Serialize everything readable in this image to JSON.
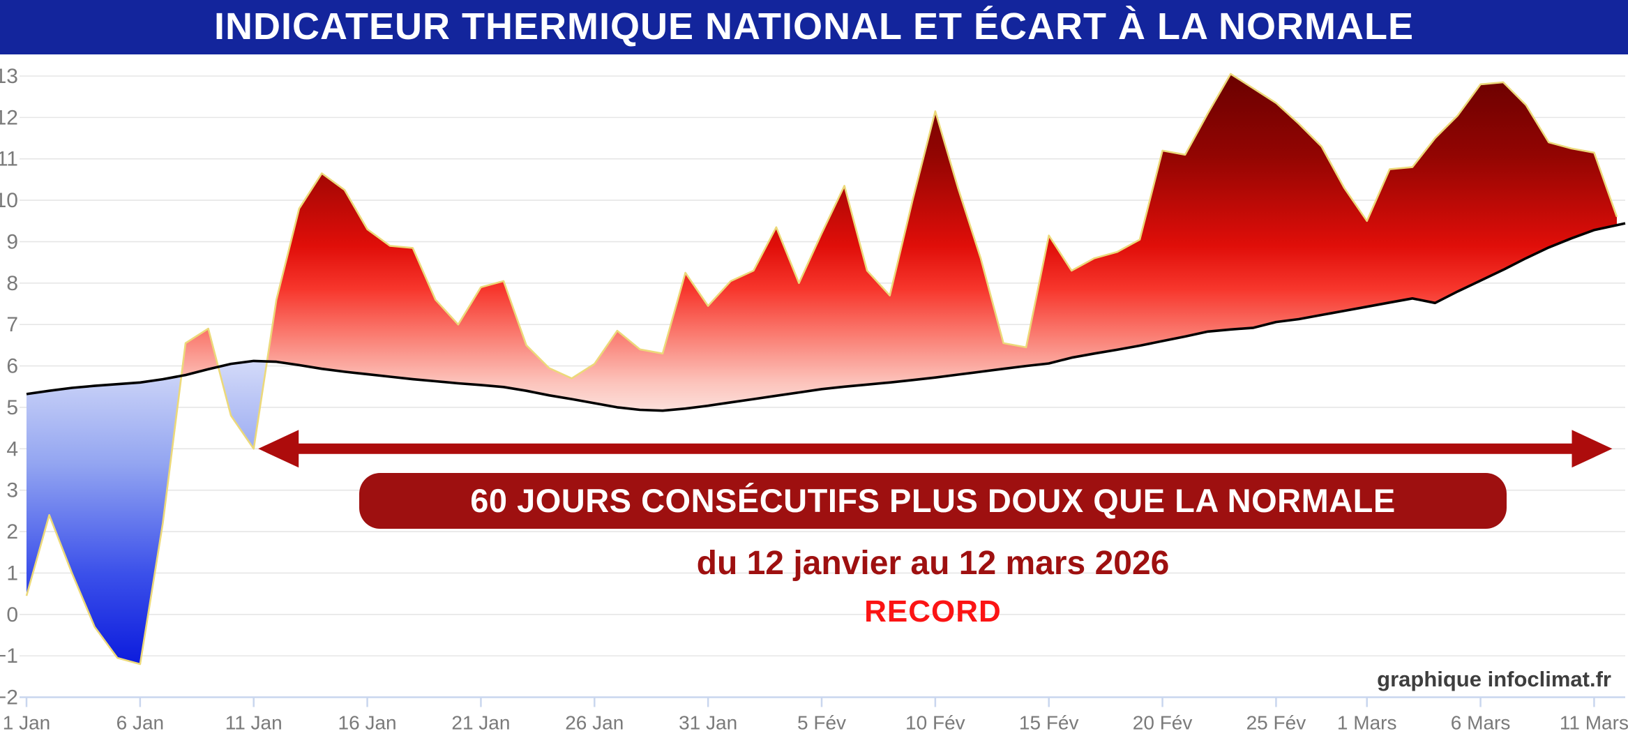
{
  "title": "INDICATEUR THERMIQUE NATIONAL ET ÉCART À LA NORMALE",
  "annotations": {
    "banner": "60 JOURS CONSÉCUTIFS PLUS DOUX QUE LA NORMALE",
    "subtitle": "du 12 janvier au 12 mars 2026",
    "record": "RECORD",
    "credit": "graphique infoclimat.fr"
  },
  "colors": {
    "title_bg": "#13259c",
    "title_text": "#ffffff",
    "banner_bg": "#9e1010",
    "banner_text": "#ffffff",
    "subtitle_text": "#9e1010",
    "record_text": "#fb1414",
    "credit_text": "#3e3e3e",
    "arrow": "#ad0c0c",
    "normale_line": "#000000",
    "edge_line": "#ecd97a",
    "grid_line": "#e6e6e6",
    "axis_line": "#c9d6ee",
    "tick_text": "#7a7a7a",
    "red_gradient": [
      "#660000",
      "#930502",
      "#e00e09",
      "#f7362c",
      "#fa7d72",
      "#fcc3bb",
      "#fdefec"
    ],
    "red_gradient_stops": [
      0,
      0.25,
      0.5,
      0.62,
      0.75,
      0.88,
      1
    ],
    "blue_gradient": [
      "#d8def9",
      "#93a5f1",
      "#3b50ea",
      "#0a19dc"
    ],
    "blue_gradient_stops": [
      0,
      0.35,
      0.7,
      1
    ]
  },
  "chart_data": {
    "type": "area",
    "title": "Indicateur thermique national et écart à la normale",
    "xlabel": "",
    "ylabel": "",
    "ylim": [
      -2,
      13
    ],
    "grid": true,
    "legend_position": "none",
    "y_ticks": [
      {
        "v": 13,
        "label": "13"
      },
      {
        "v": 12,
        "label": "12"
      },
      {
        "v": 11,
        "label": "11"
      },
      {
        "v": 10,
        "label": "10"
      },
      {
        "v": 9,
        "label": "9"
      },
      {
        "v": 8,
        "label": "8"
      },
      {
        "v": 7,
        "label": "7"
      },
      {
        "v": 6,
        "label": "6"
      },
      {
        "v": 5,
        "label": "5"
      },
      {
        "v": 4,
        "label": "4"
      },
      {
        "v": 3,
        "label": "3"
      },
      {
        "v": 2,
        "label": "2"
      },
      {
        "v": 1,
        "label": "1"
      },
      {
        "v": 0,
        "label": "0"
      },
      {
        "v": -1,
        "label": "−1"
      },
      {
        "v": -2,
        "label": "−2"
      }
    ],
    "x_ticks": [
      {
        "day": 0,
        "label": "1 Jan"
      },
      {
        "day": 5,
        "label": "6 Jan"
      },
      {
        "day": 10,
        "label": "11 Jan"
      },
      {
        "day": 15,
        "label": "16 Jan"
      },
      {
        "day": 20,
        "label": "21 Jan"
      },
      {
        "day": 25,
        "label": "26 Jan"
      },
      {
        "day": 30,
        "label": "31 Jan"
      },
      {
        "day": 35,
        "label": "5 Fév"
      },
      {
        "day": 40,
        "label": "10 Fév"
      },
      {
        "day": 45,
        "label": "15 Fév"
      },
      {
        "day": 50,
        "label": "20 Fév"
      },
      {
        "day": 55,
        "label": "25 Fév"
      },
      {
        "day": 59,
        "label": "1 Mars"
      },
      {
        "day": 64,
        "label": "6 Mars"
      },
      {
        "day": 69,
        "label": "11 Mars"
      }
    ],
    "dates": [
      "1 Jan",
      "2 Jan",
      "3 Jan",
      "4 Jan",
      "5 Jan",
      "6 Jan",
      "7 Jan",
      "8 Jan",
      "9 Jan",
      "10 Jan",
      "11 Jan",
      "12 Jan",
      "13 Jan",
      "14 Jan",
      "15 Jan",
      "16 Jan",
      "17 Jan",
      "18 Jan",
      "19 Jan",
      "20 Jan",
      "21 Jan",
      "22 Jan",
      "23 Jan",
      "24 Jan",
      "25 Jan",
      "26 Jan",
      "27 Jan",
      "28 Jan",
      "29 Jan",
      "30 Jan",
      "31 Jan",
      "1 Fév",
      "2 Fév",
      "3 Fév",
      "4 Fév",
      "5 Fév",
      "6 Fév",
      "7 Fév",
      "8 Fév",
      "9 Fév",
      "10 Fév",
      "11 Fév",
      "12 Fév",
      "13 Fév",
      "14 Fév",
      "15 Fév",
      "16 Fév",
      "17 Fév",
      "18 Fév",
      "19 Fév",
      "20 Fév",
      "21 Fév",
      "22 Fév",
      "23 Fév",
      "24 Fév",
      "25 Fév",
      "26 Fév",
      "27 Fév",
      "28 Fév",
      "1 Mars",
      "2 Mars",
      "3 Mars",
      "4 Mars",
      "5 Mars",
      "6 Mars",
      "7 Mars",
      "8 Mars",
      "9 Mars",
      "10 Mars",
      "11 Mars",
      "12 Mars"
    ],
    "series": [
      {
        "name": "indicateur thermique national",
        "values": [
          0.45,
          2.4,
          1.0,
          -0.3,
          -1.05,
          -1.2,
          2.2,
          6.55,
          6.9,
          4.8,
          4.0,
          7.6,
          9.8,
          10.65,
          10.25,
          9.3,
          8.9,
          8.85,
          7.6,
          7.0,
          7.9,
          8.05,
          6.5,
          5.95,
          5.7,
          6.05,
          6.85,
          6.4,
          6.3,
          8.25,
          7.45,
          8.05,
          8.3,
          9.35,
          8.0,
          9.2,
          10.35,
          8.3,
          7.7,
          10.0,
          12.15,
          10.3,
          8.6,
          6.55,
          6.45,
          9.15,
          8.3,
          8.6,
          8.75,
          9.05,
          11.2,
          11.1,
          12.1,
          13.05,
          12.7,
          12.35,
          11.85,
          11.3,
          10.3,
          9.5,
          10.75,
          10.8,
          11.5,
          12.05,
          12.8,
          12.85,
          12.3,
          11.4,
          11.25,
          11.15,
          9.6
        ]
      },
      {
        "name": "normale",
        "values": [
          5.32,
          5.4,
          5.47,
          5.52,
          5.56,
          5.6,
          5.68,
          5.78,
          5.92,
          6.05,
          6.12,
          6.1,
          6.02,
          5.93,
          5.86,
          5.8,
          5.74,
          5.68,
          5.63,
          5.58,
          5.54,
          5.49,
          5.4,
          5.29,
          5.2,
          5.1,
          5.0,
          4.94,
          4.92,
          4.97,
          5.04,
          5.12,
          5.2,
          5.28,
          5.36,
          5.44,
          5.5,
          5.55,
          5.6,
          5.66,
          5.72,
          5.79,
          5.86,
          5.93,
          6.0,
          6.06,
          6.2,
          6.3,
          6.39,
          6.49,
          6.6,
          6.71,
          6.83,
          6.88,
          6.92,
          7.06,
          7.13,
          7.23,
          7.33,
          7.43,
          7.53,
          7.63,
          7.52,
          7.8,
          8.06,
          8.32,
          8.6,
          8.86,
          9.08,
          9.28,
          9.4
        ]
      }
    ],
    "fill_above": "red gradient (plus doux que la normale)",
    "fill_below": "blue gradient (plus froid que la normale)",
    "arrow_annotation": {
      "value": 4.0,
      "day_start": 10.2,
      "day_end": 69.8
    }
  }
}
